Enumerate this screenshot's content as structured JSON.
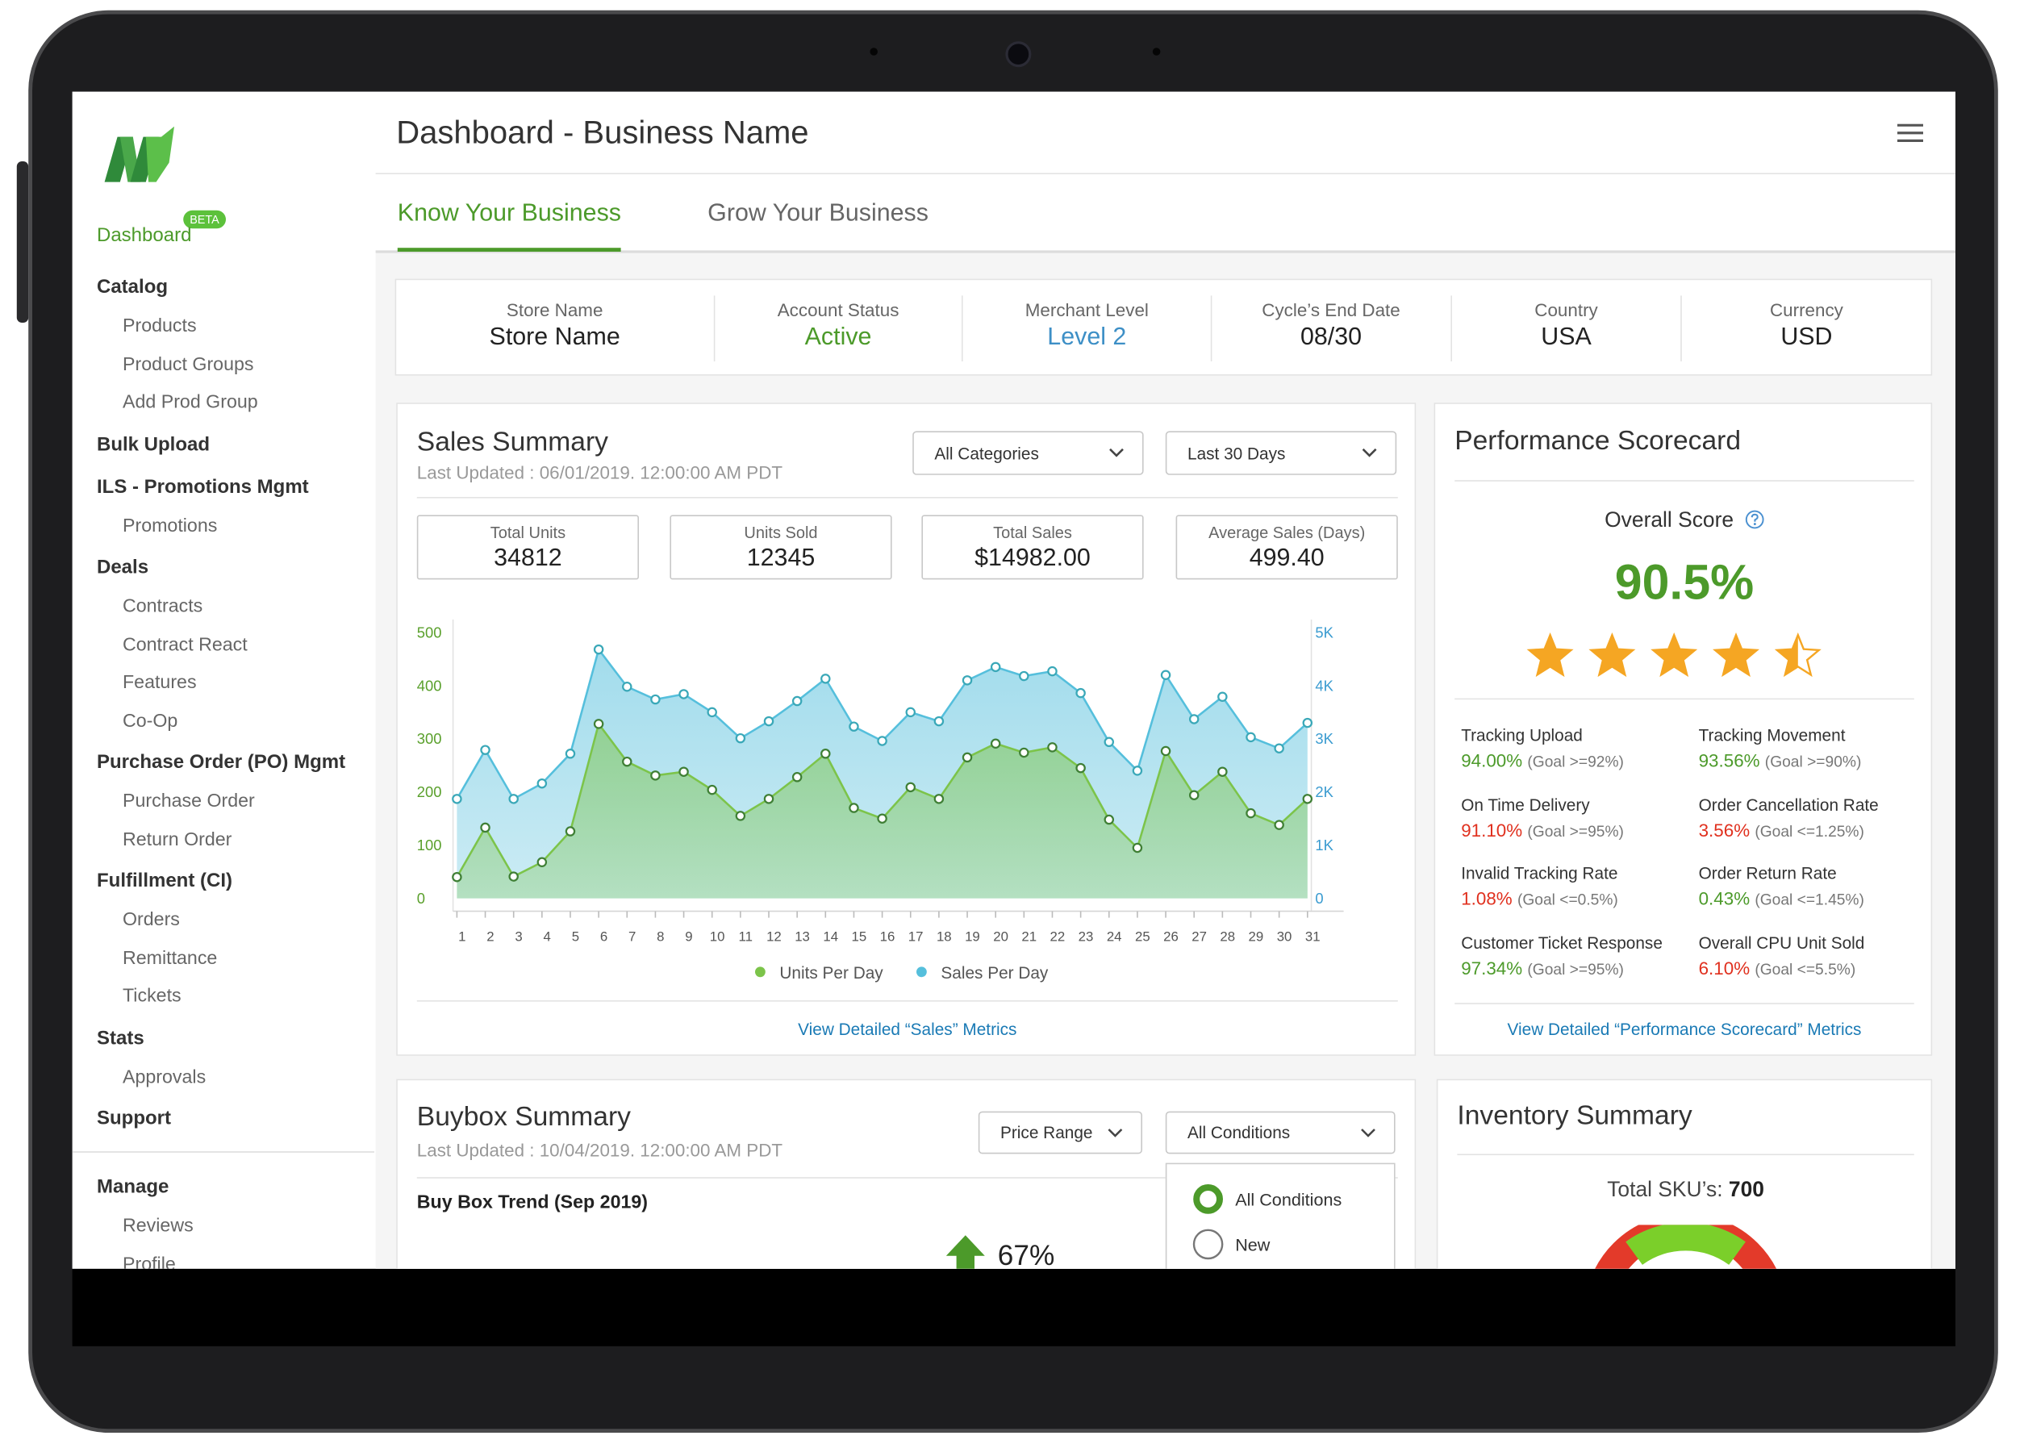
{
  "header": {
    "title": "Dashboard - Business Name"
  },
  "sidebar": {
    "badge": "BETA",
    "active": "Dashboard",
    "sections": [
      {
        "title": "Catalog",
        "items": [
          "Products",
          "Product Groups",
          "Add Prod Group"
        ]
      },
      {
        "title": "Bulk Upload",
        "items": []
      },
      {
        "title": "ILS - Promotions Mgmt",
        "items": [
          "Promotions"
        ]
      },
      {
        "title": "Deals",
        "items": [
          "Contracts",
          "Contract React",
          "Features",
          "Co-Op"
        ]
      },
      {
        "title": "Purchase Order (PO) Mgmt",
        "items": [
          "Purchase Order",
          "Return Order"
        ]
      },
      {
        "title": "Fulfillment (CI)",
        "items": [
          "Orders",
          "Remittance",
          "Tickets"
        ]
      },
      {
        "title": "Stats",
        "items": [
          "Approvals"
        ]
      },
      {
        "title": "Support",
        "items": []
      },
      {
        "title": "Manage",
        "items": [
          "Reviews",
          "Profile"
        ]
      }
    ]
  },
  "tabs": [
    "Know Your Business",
    "Grow Your Business"
  ],
  "store_info": [
    {
      "label": "Store Name",
      "value": "Store Name",
      "color": "#222222"
    },
    {
      "label": "Account Status",
      "value": "Active",
      "color": "#4c9a2a"
    },
    {
      "label": "Merchant Level",
      "value": "Level 2",
      "color": "#3d8fc6"
    },
    {
      "label": "Cycle’s End Date",
      "value": "08/30",
      "color": "#222222"
    },
    {
      "label": "Country",
      "value": "USA",
      "color": "#222222"
    },
    {
      "label": "Currency",
      "value": "USD",
      "color": "#222222"
    }
  ],
  "sales_summary": {
    "title": "Sales Summary",
    "updated": "Last Updated : 06/01/2019.  12:00:00 AM PDT",
    "dropdowns": [
      "All Categories",
      "Last 30 Days"
    ],
    "kpis": [
      {
        "label": "Total Units",
        "value": "34812"
      },
      {
        "label": "Units Sold",
        "value": "12345"
      },
      {
        "label": "Total Sales",
        "value": "$14982.00"
      },
      {
        "label": "Average Sales (Days)",
        "value": "499.40"
      }
    ],
    "link": "View Detailed “Sales” Metrics"
  },
  "chart_data": {
    "type": "area",
    "categories": [
      "1",
      "2",
      "3",
      "4",
      "5",
      "6",
      "7",
      "8",
      "9",
      "10",
      "11",
      "12",
      "13",
      "14",
      "15",
      "16",
      "17",
      "18",
      "19",
      "20",
      "21",
      "22",
      "23",
      "24",
      "25",
      "26",
      "27",
      "28",
      "29",
      "30",
      "31"
    ],
    "series": [
      {
        "name": "Units Per Day",
        "color": "#7cc44a",
        "values": [
          40,
          133,
          41,
          68,
          126,
          328,
          257,
          231,
          238,
          204,
          155,
          187,
          228,
          272,
          170,
          150,
          209,
          187,
          265,
          291,
          274,
          284,
          245,
          148,
          95,
          277,
          194,
          238,
          160,
          138,
          187
        ]
      },
      {
        "name": "Sales Per Day",
        "color": "#55bfdc",
        "axis": "y2",
        "values": [
          1870,
          2790,
          1870,
          2160,
          2720,
          4680,
          3980,
          3740,
          3840,
          3500,
          3010,
          3330,
          3710,
          4130,
          3230,
          2960,
          3500,
          3330,
          4100,
          4350,
          4180,
          4270,
          3860,
          2940,
          2400,
          4200,
          3370,
          3790,
          3030,
          2820,
          3300
        ]
      }
    ],
    "ylim": [
      0,
      500
    ],
    "yticks": [
      0,
      100,
      200,
      300,
      400,
      500
    ],
    "y2lim": [
      0,
      5000
    ],
    "y2ticks": [
      0,
      {
        "value": 1000,
        "label": "1K"
      },
      {
        "value": 2000,
        "label": "2K"
      },
      {
        "value": 3000,
        "label": "3K"
      },
      {
        "value": 4000,
        "label": "4K"
      },
      {
        "value": 5000,
        "label": "5K"
      }
    ],
    "grid": false
  },
  "scorecard": {
    "title": "Performance Scorecard",
    "overall_label": "Overall Score",
    "score": "90.5%",
    "rating": 4.5,
    "metrics": [
      {
        "name": "Tracking Upload",
        "value": "94.00%",
        "goal": "(Goal >=92%)",
        "color": "#4c9a2a"
      },
      {
        "name": "Tracking Movement",
        "value": "93.56%",
        "goal": "(Goal >=90%)",
        "color": "#4c9a2a"
      },
      {
        "name": "On Time Delivery",
        "value": "91.10%",
        "goal": "(Goal >=95%)",
        "color": "#e0301e"
      },
      {
        "name": "Order Cancellation Rate",
        "value": "3.56%",
        "goal": "(Goal <=1.25%)",
        "color": "#e0301e"
      },
      {
        "name": "Invalid Tracking Rate",
        "value": "1.08%",
        "goal": "(Goal <=0.5%)",
        "color": "#e0301e"
      },
      {
        "name": "Order Return Rate",
        "value": "0.43%",
        "goal": "(Goal <=1.45%)",
        "color": "#4c9a2a"
      },
      {
        "name": "Customer Ticket Response",
        "value": "97.34%",
        "goal": "(Goal >=95%)",
        "color": "#4c9a2a"
      },
      {
        "name": "Overall CPU Unit Sold",
        "value": "6.10%",
        "goal": "(Goal <=5.5%)",
        "color": "#e0301e"
      }
    ],
    "link": "View Detailed “Performance Scorecard” Metrics"
  },
  "buybox": {
    "title": "Buybox Summary",
    "updated": "Last Updated : 10/04/2019.  12:00:00 AM PDT",
    "dropdowns": [
      "Price Range",
      "All Conditions"
    ],
    "trend_title": "Buy Box Trend (Sep 2019)",
    "trend_value": "67%",
    "options": [
      "All Conditions",
      "New"
    ]
  },
  "inventory": {
    "title": "Inventory Summary",
    "sku_label": "Total SKU’s:",
    "sku_value": "700"
  }
}
